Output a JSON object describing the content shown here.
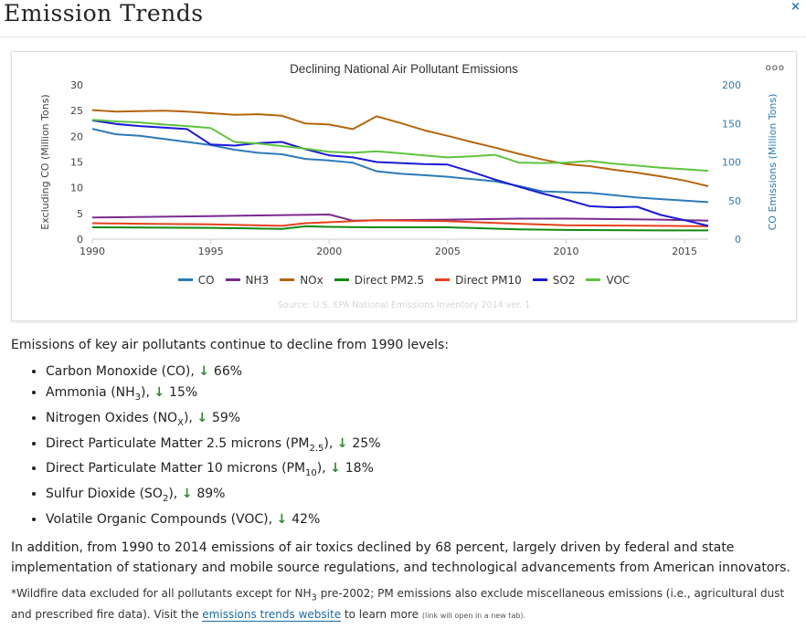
{
  "header": {
    "title": "Emission Trends",
    "close_label": "×"
  },
  "card": {
    "menu_label": "ooo"
  },
  "chart_data": {
    "type": "line",
    "title": "Declining National Air Pollutant Emissions",
    "ylabel_left": "Excluding CO (Million Tons)",
    "ylabel_right": "CO Emissions (Million Tons)",
    "xlim": [
      1990,
      2016
    ],
    "ylim_left": [
      0,
      30
    ],
    "ylim_right": [
      0,
      200
    ],
    "x_ticks": [
      "1990",
      "1995",
      "2000",
      "2005",
      "2010",
      "2015"
    ],
    "y_ticks_left": [
      "0",
      "5",
      "10",
      "15",
      "20",
      "25",
      "30"
    ],
    "y_ticks_right": [
      "0",
      "50",
      "100",
      "150",
      "200"
    ],
    "source": "Source: U.S. EPA National Emissions Inventory 2014 ver. 1",
    "grid": false,
    "legend_position": "bottom",
    "series": [
      {
        "name": "CO",
        "axis": "right",
        "color": "#2b7bb9",
        "x": [
          1990,
          1991,
          1992,
          1993,
          1994,
          1995,
          1996,
          1997,
          1998,
          1999,
          2000,
          2001,
          2002,
          2003,
          2004,
          2005,
          2006,
          2007,
          2008,
          2009,
          2010,
          2011,
          2012,
          2013,
          2014,
          2015,
          2016
        ],
        "y": [
          143,
          136,
          134,
          130,
          126,
          122,
          116,
          112,
          110,
          104,
          102,
          99,
          88,
          85,
          83,
          81,
          78,
          75,
          69,
          62,
          61,
          60,
          57,
          54,
          52,
          50,
          48
        ]
      },
      {
        "name": "NH3",
        "axis": "left",
        "color": "#7b2a8e",
        "x": [
          1990,
          1995,
          2000,
          2001,
          2002,
          2005,
          2008,
          2010,
          2014,
          2016
        ],
        "y": [
          4.2,
          4.5,
          4.8,
          3.6,
          3.7,
          3.8,
          4.0,
          4.0,
          3.8,
          3.6
        ]
      },
      {
        "name": "NOx",
        "axis": "left",
        "color": "#b5650e",
        "x": [
          1990,
          1991,
          1992,
          1993,
          1994,
          1995,
          1996,
          1997,
          1998,
          1999,
          2000,
          2001,
          2002,
          2003,
          2004,
          2005,
          2006,
          2007,
          2008,
          2009,
          2010,
          2011,
          2012,
          2013,
          2014,
          2015,
          2016
        ],
        "y": [
          25.1,
          24.8,
          24.9,
          25.0,
          24.8,
          24.5,
          24.2,
          24.3,
          24.0,
          22.5,
          22.3,
          21.4,
          23.9,
          22.6,
          21.2,
          20.1,
          18.9,
          17.8,
          16.6,
          15.5,
          14.6,
          14.2,
          13.5,
          12.9,
          12.2,
          11.4,
          10.3
        ]
      },
      {
        "name": "Direct PM2.5",
        "axis": "left",
        "color": "#118a11",
        "x": [
          1990,
          1995,
          1998,
          1999,
          2000,
          2002,
          2005,
          2008,
          2010,
          2014,
          2016
        ],
        "y": [
          2.3,
          2.2,
          2.0,
          2.5,
          2.4,
          2.3,
          2.3,
          1.9,
          1.8,
          1.7,
          1.7
        ]
      },
      {
        "name": "Direct PM10",
        "axis": "left",
        "color": "#e5401c",
        "x": [
          1990,
          1992,
          1995,
          1998,
          1999,
          2002,
          2005,
          2008,
          2010,
          2014,
          2016
        ],
        "y": [
          3.1,
          3.0,
          2.9,
          2.6,
          3.1,
          3.7,
          3.5,
          3.0,
          2.7,
          2.6,
          2.5
        ]
      },
      {
        "name": "SO2",
        "axis": "left",
        "color": "#1a1ad6",
        "x": [
          1990,
          1991,
          1992,
          1993,
          1994,
          1995,
          1996,
          1997,
          1998,
          1999,
          2000,
          2001,
          2002,
          2003,
          2004,
          2005,
          2006,
          2007,
          2008,
          2009,
          2010,
          2011,
          2012,
          2013,
          2014,
          2015,
          2016
        ],
        "y": [
          23.1,
          22.4,
          22.0,
          21.7,
          21.4,
          18.4,
          18.2,
          18.7,
          18.9,
          17.5,
          16.3,
          15.9,
          15.0,
          14.8,
          14.6,
          14.5,
          13.1,
          11.6,
          10.2,
          8.9,
          7.7,
          6.4,
          6.2,
          6.3,
          4.7,
          3.7,
          2.6
        ]
      },
      {
        "name": "VOC",
        "axis": "left",
        "color": "#5ec43c",
        "x": [
          1990,
          1991,
          1992,
          1993,
          1994,
          1995,
          1996,
          1997,
          1998,
          1999,
          2000,
          2001,
          2002,
          2003,
          2004,
          2005,
          2006,
          2007,
          2008,
          2009,
          2010,
          2011,
          2012,
          2013,
          2014,
          2015,
          2016
        ],
        "y": [
          23.2,
          22.9,
          22.7,
          22.3,
          22.0,
          21.6,
          18.9,
          18.6,
          18.1,
          17.6,
          17.0,
          16.8,
          17.1,
          16.7,
          16.3,
          15.9,
          16.1,
          16.4,
          14.9,
          14.8,
          14.9,
          15.2,
          14.7,
          14.3,
          13.9,
          13.6,
          13.3
        ]
      }
    ]
  },
  "content": {
    "intro": "Emissions of key air pollutants continue to decline from 1990 levels:",
    "items": [
      {
        "pre": "Carbon Monoxide (CO), ",
        "sub": "",
        "post": "",
        "pct": "66%"
      },
      {
        "pre": "Ammonia (NH",
        "sub": "3",
        "post": "), ",
        "pct": "15%"
      },
      {
        "pre": "Nitrogen Oxides (NO",
        "sub": "X",
        "post": "), ",
        "pct": "59%"
      },
      {
        "pre": "Direct Particulate Matter 2.5 microns (PM",
        "sub": "2.5",
        "post": "), ",
        "pct": "25%"
      },
      {
        "pre": "Direct Particulate Matter 10 microns (PM",
        "sub": "10",
        "post": "), ",
        "pct": "18%"
      },
      {
        "pre": "Sulfur Dioxide (SO",
        "sub": "2",
        "post": "), ",
        "pct": "89%"
      },
      {
        "pre": "Volatile Organic Compounds (VOC), ",
        "sub": "",
        "post": "",
        "pct": "42%"
      }
    ],
    "paragraph": "In addition, from 1990 to 2014 emissions of air toxics declined by 68 percent, largely driven by federal and state implementation of stationary and mobile source regulations, and technological advancements from American innovators.",
    "foot_pre": "*Wildfire data excluded for all pollutants except for NH",
    "foot_sub": "3",
    "foot_mid": " pre-2002; PM emissions also exclude miscellaneous emissions (i.e., agricultural dust and prescribed fire data). Visit the ",
    "foot_link": "emissions trends website",
    "foot_post": " to learn more ",
    "foot_tiny": "(link will open in a new tab)."
  }
}
